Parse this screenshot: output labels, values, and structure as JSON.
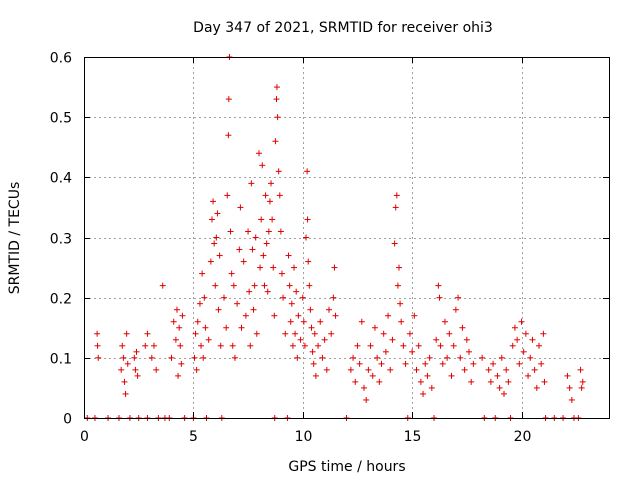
{
  "chart_data": {
    "type": "scatter",
    "title": "Day 347 of 2021, SRMTID for receiver ohi3",
    "xlabel": "GPS time / hours",
    "ylabel": "SRMTID / TECUs",
    "xlim": [
      0,
      24
    ],
    "ylim": [
      0,
      0.6
    ],
    "x_ticks": [
      0,
      5,
      10,
      15,
      20
    ],
    "y_ticks": [
      0,
      0.1,
      0.2,
      0.3,
      0.4,
      0.5,
      0.6
    ],
    "x_tick_labels": [
      "0",
      "5",
      "10",
      "15",
      "20"
    ],
    "y_tick_labels": [
      "0",
      "0.1",
      "0.2",
      "0.3",
      "0.4",
      "0.5",
      "0.6"
    ],
    "grid": true,
    "marker": "+",
    "marker_color": "#e00000",
    "series": [
      {
        "name": "SRMTID",
        "points": [
          [
            0.15,
            0
          ],
          [
            0.5,
            0
          ],
          [
            0.6,
            0.14
          ],
          [
            0.62,
            0.12
          ],
          [
            0.65,
            0.1
          ],
          [
            1.1,
            0
          ],
          [
            1.7,
            0.08
          ],
          [
            1.75,
            0.12
          ],
          [
            1.8,
            0.1
          ],
          [
            1.85,
            0.06
          ],
          [
            1.9,
            0.04
          ],
          [
            1.95,
            0.14
          ],
          [
            2.0,
            0.09
          ],
          [
            1.6,
            0
          ],
          [
            2.1,
            0
          ],
          [
            2.3,
            0.1
          ],
          [
            2.35,
            0.08
          ],
          [
            2.4,
            0.11
          ],
          [
            2.45,
            0.07
          ],
          [
            2.5,
            0
          ],
          [
            2.8,
            0.12
          ],
          [
            2.9,
            0.14
          ],
          [
            2.9,
            0
          ],
          [
            3.1,
            0.1
          ],
          [
            3.2,
            0.12
          ],
          [
            3.3,
            0.08
          ],
          [
            3.4,
            0
          ],
          [
            3.6,
            0.22
          ],
          [
            3.7,
            0
          ],
          [
            3.9,
            0
          ],
          [
            4.0,
            0.1
          ],
          [
            4.1,
            0.16
          ],
          [
            4.2,
            0.13
          ],
          [
            4.25,
            0.18
          ],
          [
            4.3,
            0.07
          ],
          [
            4.35,
            0.15
          ],
          [
            4.4,
            0.12
          ],
          [
            4.45,
            0.09
          ],
          [
            4.5,
            0.17
          ],
          [
            4.6,
            0
          ],
          [
            5.0,
            0
          ],
          [
            5.05,
            0.1
          ],
          [
            5.1,
            0.14
          ],
          [
            5.15,
            0.08
          ],
          [
            5.2,
            0.16
          ],
          [
            5.3,
            0.19
          ],
          [
            5.35,
            0.12
          ],
          [
            5.4,
            0.24
          ],
          [
            5.45,
            0.1
          ],
          [
            5.5,
            0.2
          ],
          [
            5.55,
            0.15
          ],
          [
            5.6,
            0
          ],
          [
            5.7,
            0.13
          ],
          [
            5.8,
            0.26
          ],
          [
            5.85,
            0.33
          ],
          [
            5.9,
            0.36
          ],
          [
            5.95,
            0.29
          ],
          [
            6.0,
            0.22
          ],
          [
            6.05,
            0.3
          ],
          [
            6.1,
            0.34
          ],
          [
            6.15,
            0.18
          ],
          [
            6.2,
            0.27
          ],
          [
            6.25,
            0.12
          ],
          [
            6.3,
            0
          ],
          [
            6.4,
            0.2
          ],
          [
            6.5,
            0.15
          ],
          [
            6.55,
            0.37
          ],
          [
            6.6,
            0.47
          ],
          [
            6.62,
            0.53
          ],
          [
            6.65,
            0.6
          ],
          [
            6.7,
            0.31
          ],
          [
            6.75,
            0.24
          ],
          [
            6.8,
            0.12
          ],
          [
            6.85,
            0.22
          ],
          [
            6.9,
            0.1
          ],
          [
            7.0,
            0.19
          ],
          [
            7.1,
            0.28
          ],
          [
            7.15,
            0.35
          ],
          [
            7.2,
            0.15
          ],
          [
            7.3,
            0.26
          ],
          [
            7.4,
            0.17
          ],
          [
            7.5,
            0.31
          ],
          [
            7.55,
            0.21
          ],
          [
            7.6,
            0.12
          ],
          [
            7.65,
            0.39
          ],
          [
            7.7,
            0.28
          ],
          [
            7.75,
            0.18
          ],
          [
            7.8,
            0.22
          ],
          [
            7.85,
            0.3
          ],
          [
            7.9,
            0.14
          ],
          [
            8.0,
            0.44
          ],
          [
            8.05,
            0.25
          ],
          [
            8.1,
            0.33
          ],
          [
            8.15,
            0.42
          ],
          [
            8.2,
            0.27
          ],
          [
            8.25,
            0.22
          ],
          [
            8.3,
            0.37
          ],
          [
            8.35,
            0.29
          ],
          [
            8.4,
            0.21
          ],
          [
            8.45,
            0.31
          ],
          [
            8.5,
            0.36
          ],
          [
            8.55,
            0.39
          ],
          [
            8.6,
            0.33
          ],
          [
            8.65,
            0.25
          ],
          [
            8.7,
            0.17
          ],
          [
            8.72,
            0
          ],
          [
            8.75,
            0.46
          ],
          [
            8.8,
            0.53
          ],
          [
            8.82,
            0.55
          ],
          [
            8.85,
            0.5
          ],
          [
            8.9,
            0.41
          ],
          [
            8.95,
            0.37
          ],
          [
            9.0,
            0.31
          ],
          [
            9.05,
            0.24
          ],
          [
            9.1,
            0.2
          ],
          [
            9.2,
            0.14
          ],
          [
            9.3,
            0
          ],
          [
            9.35,
            0.27
          ],
          [
            9.4,
            0.22
          ],
          [
            9.45,
            0.16
          ],
          [
            9.5,
            0.19
          ],
          [
            9.55,
            0.12
          ],
          [
            9.6,
            0.25
          ],
          [
            9.65,
            0.14
          ],
          [
            9.7,
            0.21
          ],
          [
            9.75,
            0.1
          ],
          [
            9.8,
            0.17
          ],
          [
            9.9,
            0.13
          ],
          [
            10.0,
            0.2
          ],
          [
            10.05,
            0.16
          ],
          [
            10.1,
            0.12
          ],
          [
            10.15,
            0.3
          ],
          [
            10.2,
            0.41
          ],
          [
            10.22,
            0.33
          ],
          [
            10.25,
            0.26
          ],
          [
            10.3,
            0.22
          ],
          [
            10.35,
            0.18
          ],
          [
            10.4,
            0.15
          ],
          [
            10.45,
            0.11
          ],
          [
            10.5,
            0.09
          ],
          [
            10.55,
            0.14
          ],
          [
            10.6,
            0.07
          ],
          [
            10.7,
            0.12
          ],
          [
            10.8,
            0.16
          ],
          [
            10.9,
            0.1
          ],
          [
            11.0,
            0.13
          ],
          [
            11.1,
            0.08
          ],
          [
            11.2,
            0.18
          ],
          [
            11.3,
            0.14
          ],
          [
            11.4,
            0.2
          ],
          [
            11.45,
            0.25
          ],
          [
            11.5,
            0.17
          ],
          [
            12.0,
            0
          ],
          [
            12.2,
            0.08
          ],
          [
            12.3,
            0.1
          ],
          [
            12.4,
            0.06
          ],
          [
            12.5,
            0.12
          ],
          [
            12.6,
            0.09
          ],
          [
            12.7,
            0.16
          ],
          [
            12.8,
            0.05
          ],
          [
            12.9,
            0.03
          ],
          [
            13.0,
            0.08
          ],
          [
            13.1,
            0.12
          ],
          [
            13.2,
            0.07
          ],
          [
            13.3,
            0.15
          ],
          [
            13.4,
            0.1
          ],
          [
            13.5,
            0.06
          ],
          [
            13.6,
            0.09
          ],
          [
            13.7,
            0.14
          ],
          [
            13.8,
            0.11
          ],
          [
            13.9,
            0.17
          ],
          [
            14.0,
            0.08
          ],
          [
            14.1,
            0.13
          ],
          [
            14.2,
            0.29
          ],
          [
            14.25,
            0.35
          ],
          [
            14.3,
            0.37
          ],
          [
            14.35,
            0.22
          ],
          [
            14.4,
            0.25
          ],
          [
            14.45,
            0.19
          ],
          [
            14.5,
            0.16
          ],
          [
            14.6,
            0.12
          ],
          [
            14.7,
            0.09
          ],
          [
            14.8,
            0
          ],
          [
            14.9,
            0.14
          ],
          [
            15.0,
            0.11
          ],
          [
            15.1,
            0.17
          ],
          [
            15.2,
            0.08
          ],
          [
            15.3,
            0.12
          ],
          [
            15.4,
            0.06
          ],
          [
            15.5,
            0.04
          ],
          [
            15.6,
            0.09
          ],
          [
            15.7,
            0.07
          ],
          [
            15.8,
            0.1
          ],
          [
            15.9,
            0.05
          ],
          [
            16.0,
            0
          ],
          [
            16.1,
            0.13
          ],
          [
            16.2,
            0.22
          ],
          [
            16.25,
            0.2
          ],
          [
            16.3,
            0.12
          ],
          [
            16.4,
            0.09
          ],
          [
            16.5,
            0.16
          ],
          [
            16.6,
            0.1
          ],
          [
            16.7,
            0.14
          ],
          [
            16.8,
            0.07
          ],
          [
            16.9,
            0.12
          ],
          [
            17.0,
            0.18
          ],
          [
            17.1,
            0.2
          ],
          [
            17.2,
            0.1
          ],
          [
            17.3,
            0.15
          ],
          [
            17.4,
            0.08
          ],
          [
            17.5,
            0.13
          ],
          [
            17.6,
            0.11
          ],
          [
            17.7,
            0.06
          ],
          [
            17.8,
            0.09
          ],
          [
            18.2,
            0.1
          ],
          [
            18.3,
            0
          ],
          [
            18.5,
            0.08
          ],
          [
            18.6,
            0.06
          ],
          [
            18.7,
            0.09
          ],
          [
            18.8,
            0
          ],
          [
            18.9,
            0.07
          ],
          [
            19.0,
            0.05
          ],
          [
            19.1,
            0.1
          ],
          [
            19.2,
            0.04
          ],
          [
            19.3,
            0.08
          ],
          [
            19.4,
            0.06
          ],
          [
            19.5,
            0
          ],
          [
            19.6,
            0.12
          ],
          [
            19.7,
            0.15
          ],
          [
            19.8,
            0.13
          ],
          [
            19.9,
            0.09
          ],
          [
            20.0,
            0.16
          ],
          [
            20.1,
            0.11
          ],
          [
            20.2,
            0.14
          ],
          [
            20.3,
            0.07
          ],
          [
            20.4,
            0.1
          ],
          [
            20.5,
            0.13
          ],
          [
            20.6,
            0.08
          ],
          [
            20.7,
            0.05
          ],
          [
            20.8,
            0.12
          ],
          [
            20.9,
            0.09
          ],
          [
            21.0,
            0.14
          ],
          [
            21.05,
            0.06
          ],
          [
            21.1,
            0
          ],
          [
            21.5,
            0
          ],
          [
            21.9,
            0
          ],
          [
            22.1,
            0.07
          ],
          [
            22.2,
            0.05
          ],
          [
            22.3,
            0.03
          ],
          [
            22.4,
            0
          ],
          [
            22.6,
            0
          ],
          [
            22.7,
            0.08
          ],
          [
            22.75,
            0.05
          ],
          [
            22.8,
            0.06
          ]
        ]
      }
    ]
  }
}
